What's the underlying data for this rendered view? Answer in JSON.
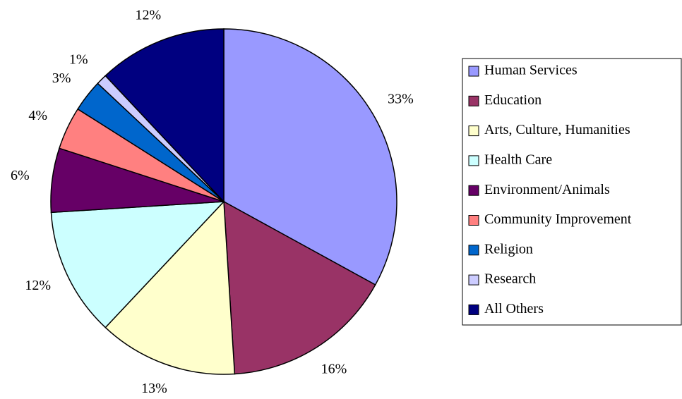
{
  "chart_data": {
    "type": "pie",
    "categories": [
      "Human Services",
      "Education",
      "Arts, Culture, Humanities",
      "Health Care",
      "Environment/Animals",
      "Community Improvement",
      "Religion",
      "Research",
      "All Others"
    ],
    "values": [
      33,
      16,
      13,
      12,
      6,
      4,
      3,
      1,
      12
    ],
    "value_labels": [
      "33%",
      "16%",
      "13%",
      "12%",
      "6%",
      "4%",
      "3%",
      "1%",
      "12%"
    ],
    "colors": [
      "#9999ff",
      "#993366",
      "#ffffcc",
      "#ccffff",
      "#660066",
      "#ff8080",
      "#0066cc",
      "#ccccff",
      "#000080"
    ],
    "legend": "right"
  }
}
